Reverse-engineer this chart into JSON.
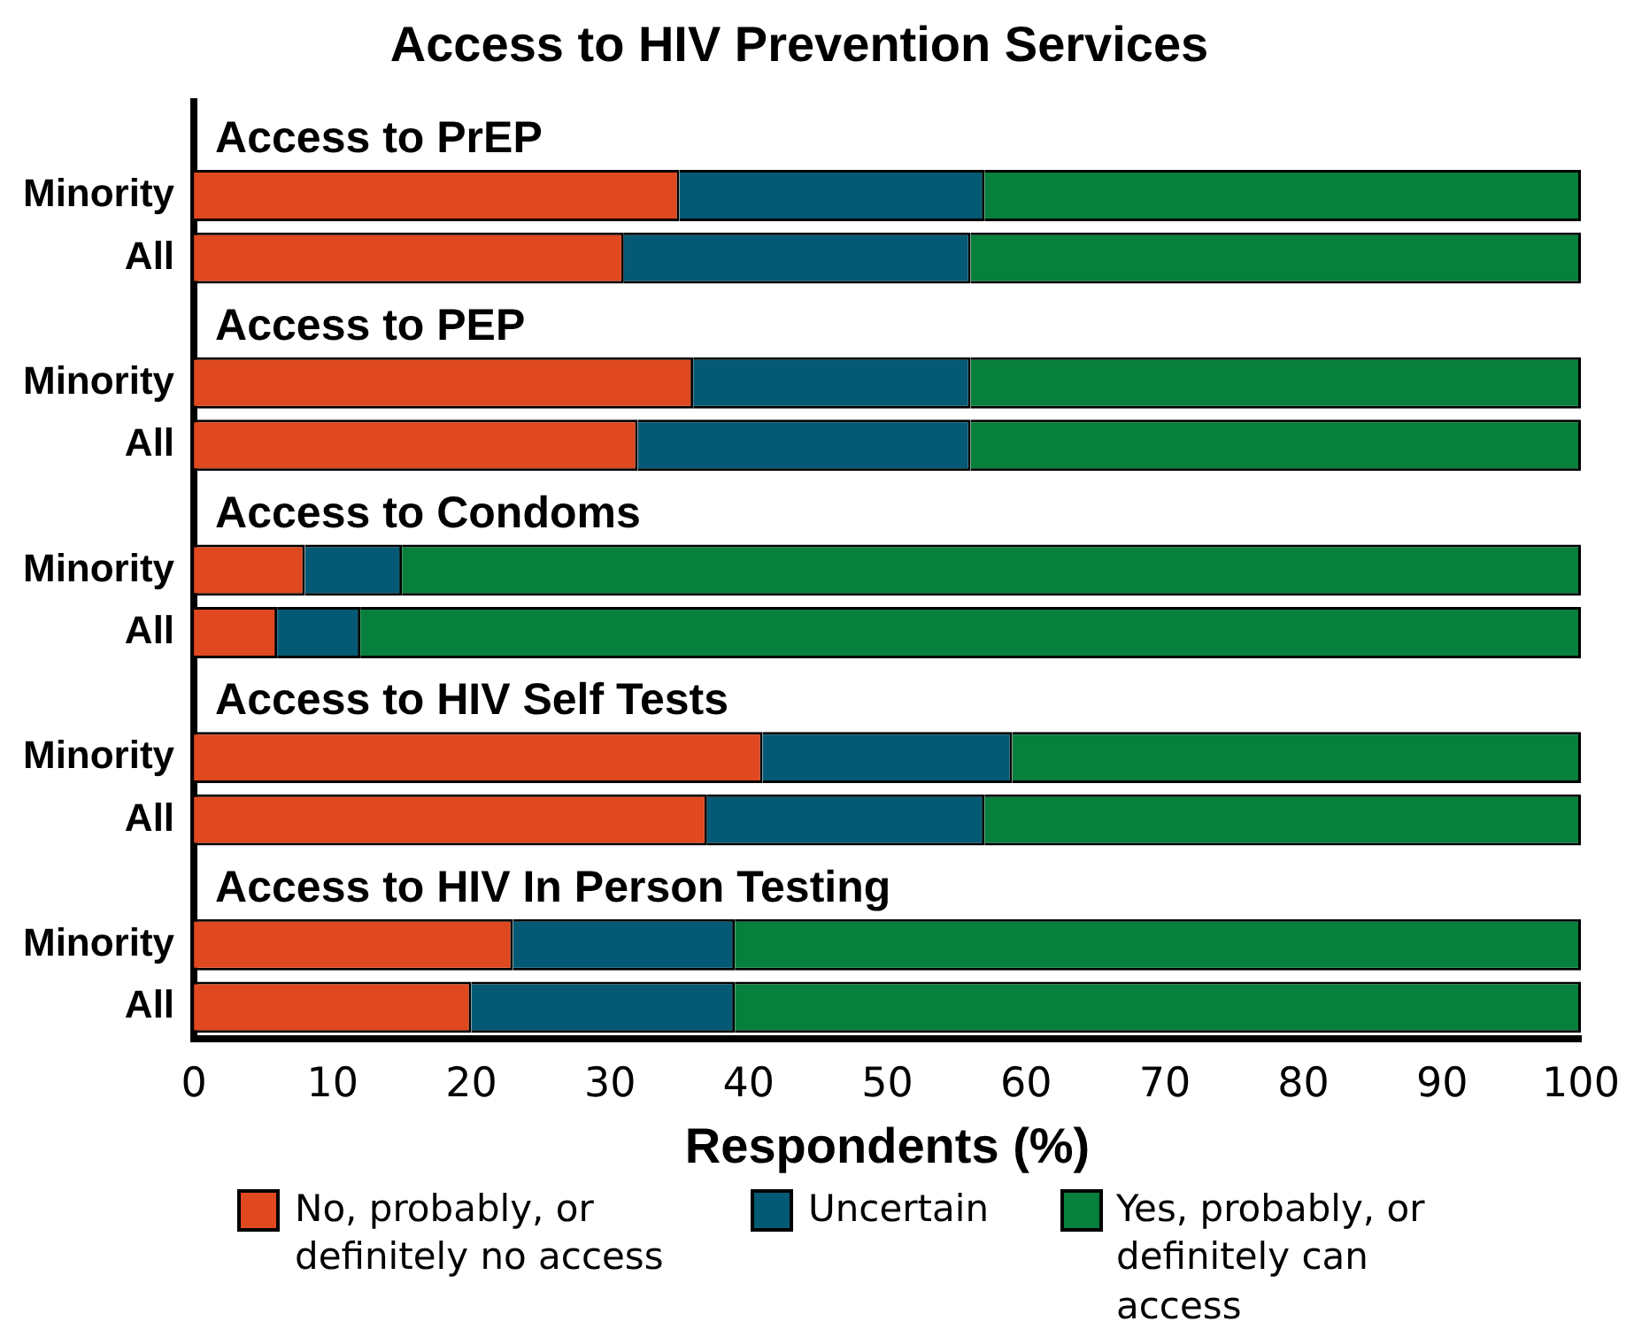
{
  "chart_data": {
    "type": "bar",
    "orientation": "horizontal",
    "stacked": true,
    "title": "Access to HIV Prevention Services",
    "xlabel": "Respondents (%)",
    "categories": [
      null,
      "Minority",
      "All",
      null,
      "Minority",
      "All",
      null,
      "Minority",
      "All",
      null,
      "Minority",
      "All",
      null,
      "Minority",
      "All"
    ],
    "annotations": [
      "Access to PrEP",
      "Access to PEP",
      "Access to Condoms",
      "Access to HIV Self Tests",
      "Access to HIV In Person Testing"
    ],
    "series": [
      {
        "name": "No, probably, or definitely no access",
        "color": "#e0481f",
        "values": [
          null,
          35,
          31,
          null,
          36,
          32,
          null,
          8,
          6,
          null,
          41,
          37,
          null,
          23,
          20
        ]
      },
      {
        "name": "Uncertain",
        "color": "#045a74",
        "values": [
          null,
          22,
          25,
          null,
          20,
          24,
          null,
          7,
          6,
          null,
          18,
          20,
          null,
          16,
          19
        ]
      },
      {
        "name": "Yes, probably, or definitely can access",
        "color": "#06803c",
        "values": [
          null,
          43,
          44,
          null,
          44,
          44,
          null,
          85,
          88,
          null,
          41,
          43,
          null,
          61,
          61
        ]
      }
    ],
    "xlim": [
      0,
      100
    ],
    "xticks": [
      0,
      10,
      20,
      30,
      40,
      50,
      60,
      70,
      80,
      90,
      100
    ],
    "grid": false,
    "legend": "bottom"
  }
}
